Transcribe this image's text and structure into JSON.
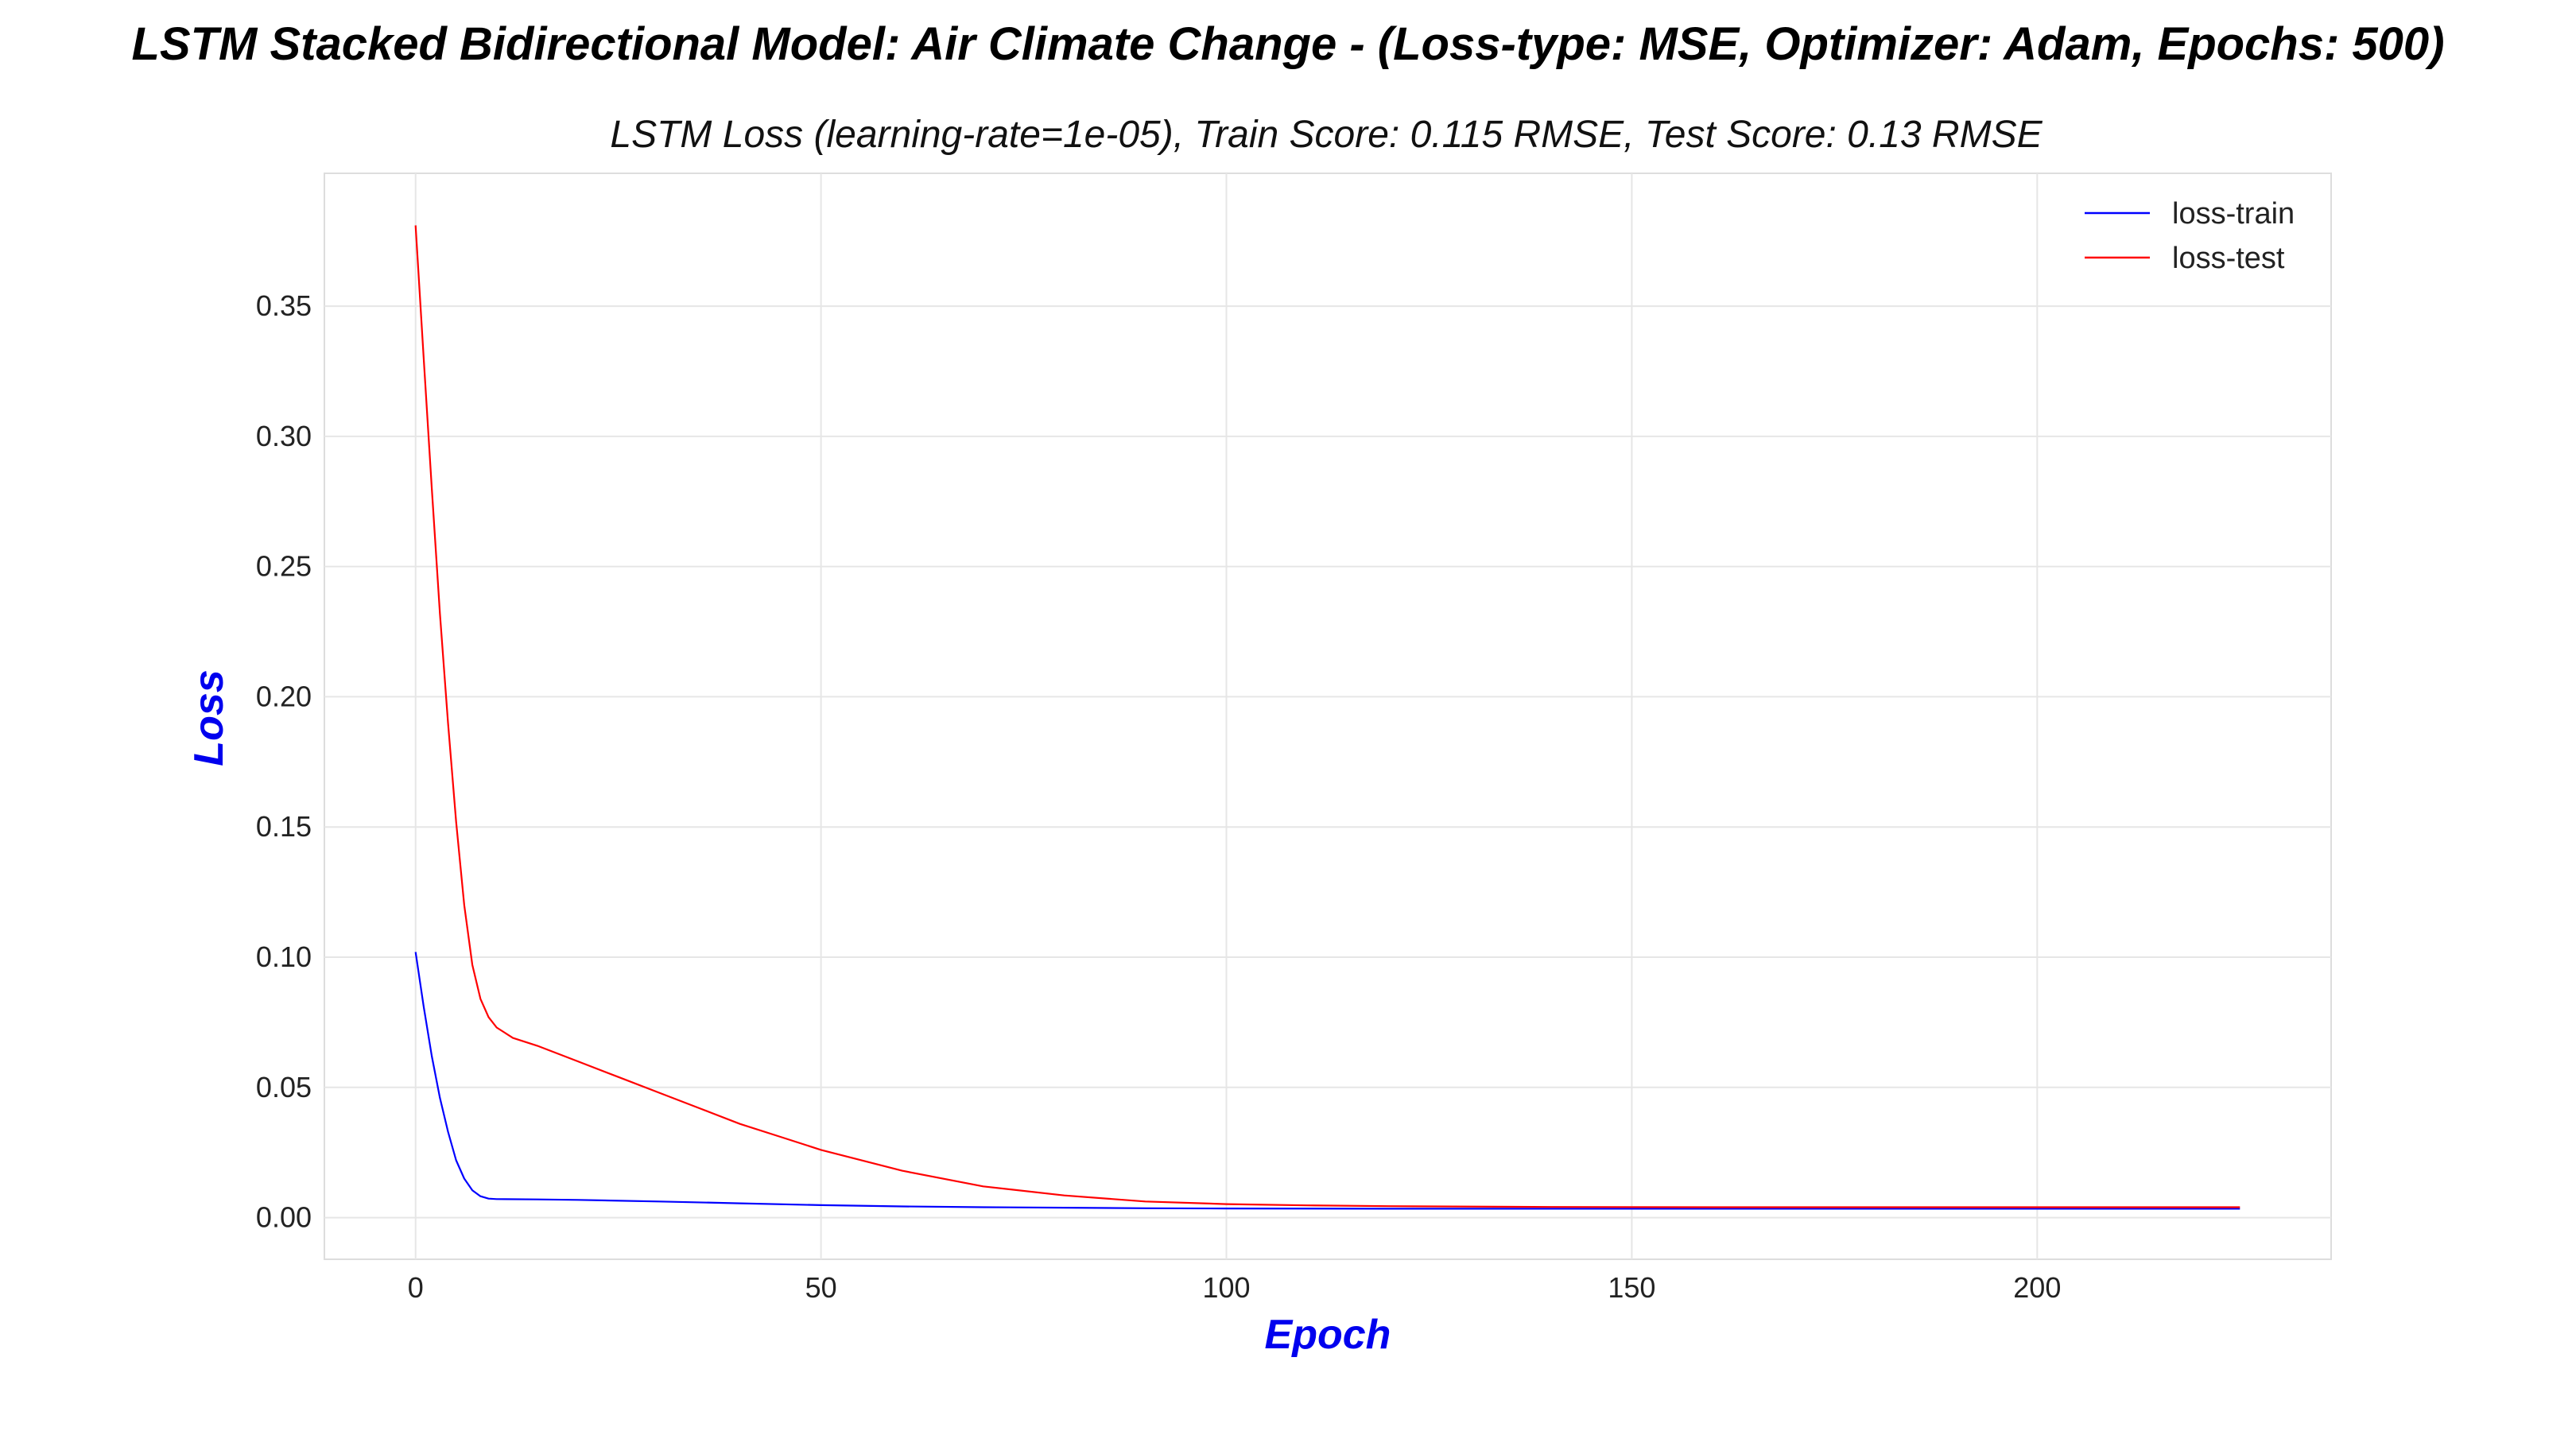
{
  "figure_title": "LSTM Stacked Bidirectional Model: Air Climate Change - (Loss-type: MSE, Optimizer: Adam, Epochs: 500)",
  "chart_data": {
    "type": "line",
    "title": "LSTM Loss (learning-rate=1e-05), Train Score: 0.115 RMSE, Test Score: 0.13 RMSE",
    "xlabel": "Epoch",
    "ylabel": "Loss",
    "label_color": "#0000ee",
    "xlim": [
      -11.25,
      236.25
    ],
    "ylim": [
      -0.016,
      0.401
    ],
    "xticks": [
      0,
      50,
      100,
      150,
      200
    ],
    "xtick_labels": [
      "0",
      "50",
      "100",
      "150",
      "200"
    ],
    "yticks": [
      0.0,
      0.05,
      0.1,
      0.15,
      0.2,
      0.25,
      0.3,
      0.35
    ],
    "ytick_labels": [
      "0.00",
      "0.05",
      "0.10",
      "0.15",
      "0.20",
      "0.25",
      "0.30",
      "0.35"
    ],
    "grid": true,
    "legend_position": "top-right",
    "series": [
      {
        "name": "loss-train",
        "color": "#0000ff",
        "x": [
          0,
          1,
          2,
          3,
          4,
          5,
          6,
          7,
          8,
          9,
          10,
          15,
          20,
          30,
          40,
          50,
          60,
          70,
          80,
          90,
          100,
          120,
          140,
          160,
          180,
          200,
          225
        ],
        "y": [
          0.102,
          0.081,
          0.062,
          0.046,
          0.033,
          0.022,
          0.015,
          0.0105,
          0.0082,
          0.0073,
          0.0071,
          0.007,
          0.0068,
          0.0062,
          0.0055,
          0.0048,
          0.0043,
          0.004,
          0.0038,
          0.0036,
          0.0035,
          0.0034,
          0.0034,
          0.0034,
          0.0034,
          0.0034,
          0.0034
        ]
      },
      {
        "name": "loss-test",
        "color": "#ff0000",
        "x": [
          0,
          1,
          2,
          3,
          4,
          5,
          6,
          7,
          8,
          9,
          10,
          11,
          12,
          15,
          20,
          25,
          30,
          35,
          40,
          45,
          50,
          60,
          70,
          80,
          90,
          100,
          110,
          120,
          140,
          160,
          180,
          200,
          225
        ],
        "y": [
          0.381,
          0.33,
          0.28,
          0.232,
          0.19,
          0.152,
          0.12,
          0.097,
          0.084,
          0.077,
          0.073,
          0.071,
          0.069,
          0.066,
          0.06,
          0.054,
          0.048,
          0.042,
          0.036,
          0.031,
          0.026,
          0.018,
          0.012,
          0.0085,
          0.0062,
          0.0052,
          0.0047,
          0.0044,
          0.0041,
          0.004,
          0.004,
          0.004,
          0.004
        ]
      }
    ]
  }
}
